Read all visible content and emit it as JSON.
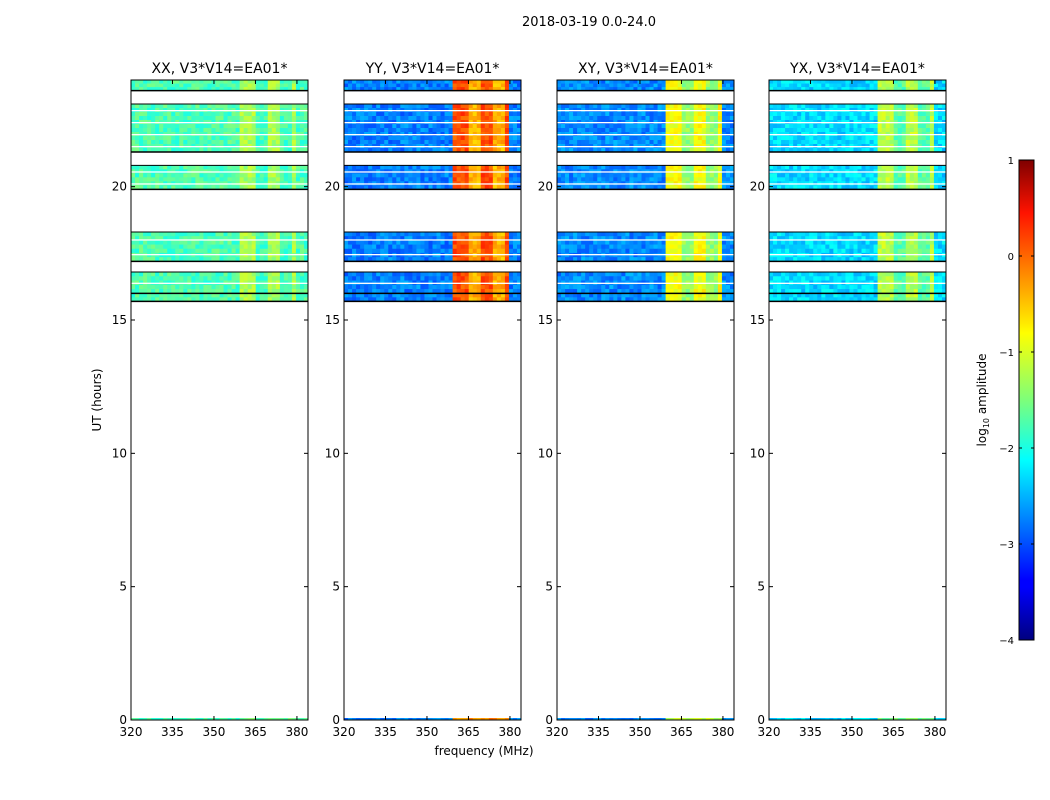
{
  "chart_data": {
    "type": "heatmap",
    "suptitle": "2018-03-19 0.0-24.0",
    "xlabel": "frequency (MHz)",
    "ylabel": "UT (hours)",
    "xlim": [
      320,
      384
    ],
    "ylim": [
      0,
      24
    ],
    "xticks": [
      320,
      335,
      350,
      365,
      380
    ],
    "xtick_labels": [
      "320",
      "335",
      "350",
      "365",
      "380"
    ],
    "yticks": [
      0,
      5,
      10,
      15,
      20
    ],
    "ytick_labels": [
      "0",
      "5",
      "10",
      "15",
      "20"
    ],
    "data_time_blocks_hours": [
      [
        15.7,
        16.0
      ],
      [
        16.0,
        16.8
      ],
      [
        17.2,
        18.3
      ],
      [
        19.9,
        20.8
      ],
      [
        21.3,
        23.1
      ],
      [
        23.6,
        24.0
      ]
    ],
    "rfi_band_mhz": [
      360,
      380
    ],
    "panels": [
      {
        "title": "XX, V3*V14=EA01*",
        "base_log_amp": -1.75,
        "rfi_log_amp": -1.3
      },
      {
        "title": "YY, V3*V14=EA01*",
        "base_log_amp": -2.75,
        "rfi_log_amp": 0.0
      },
      {
        "title": "XY, V3*V14=EA01*",
        "base_log_amp": -2.7,
        "rfi_log_amp": -0.9
      },
      {
        "title": "YX, V3*V14=EA01*",
        "base_log_amp": -2.3,
        "rfi_log_amp": -1.2
      }
    ],
    "colorbar": {
      "label": "log",
      "label_sub": "10",
      "label_rest": " amplitude",
      "range": [
        -4,
        1
      ],
      "ticks": [
        1,
        0,
        -1,
        -2,
        -3,
        -4
      ],
      "tick_labels": [
        "1",
        "0",
        "−1",
        "−2",
        "−3",
        "−4"
      ],
      "colormap": "jet"
    }
  }
}
